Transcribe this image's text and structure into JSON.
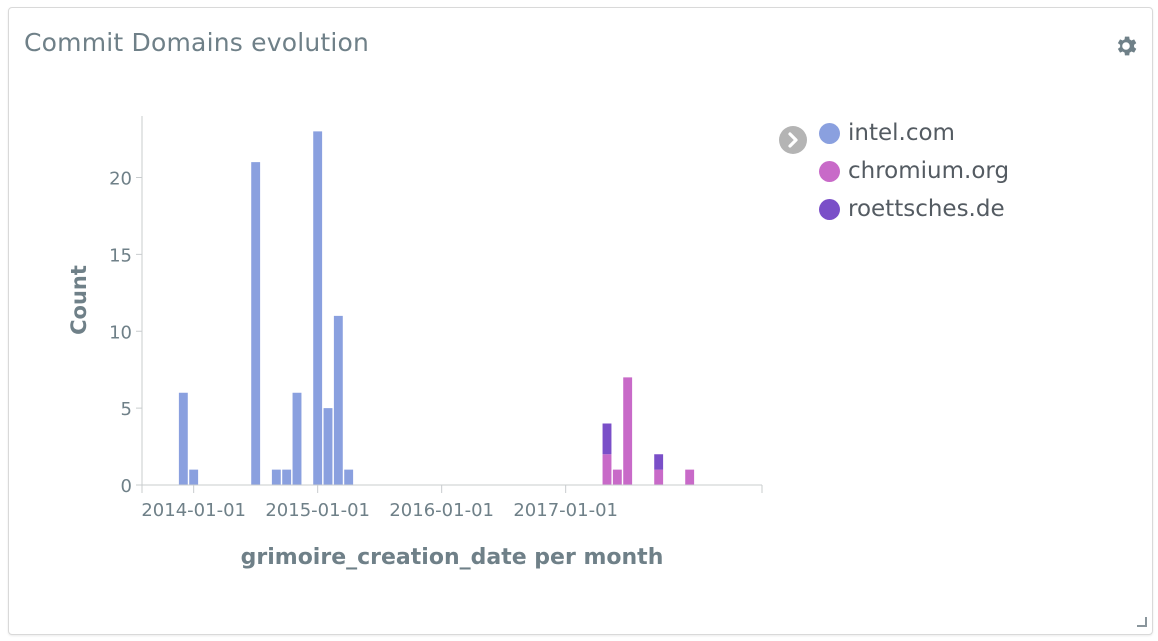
{
  "panel": {
    "title": "Commit Domains evolution",
    "settings_icon": "gear-icon",
    "resize_icon": "resize-handle-icon"
  },
  "legend": {
    "toggle_icon": "chevron-right-icon",
    "items": [
      {
        "label": "intel.com",
        "color": "#8aa0df"
      },
      {
        "label": "chromium.org",
        "color": "#c86ac8"
      },
      {
        "label": "roettsches.de",
        "color": "#7a4fc8"
      }
    ]
  },
  "chart_data": {
    "type": "bar",
    "stacked": true,
    "xlabel": "grimoire_creation_date per month",
    "ylabel": "Count",
    "ylim": [
      0,
      24
    ],
    "yticks": [
      0,
      5,
      10,
      15,
      20
    ],
    "xlim": [
      "2013-08-01",
      "2018-08-01"
    ],
    "xticks": [
      "2014-01-01",
      "2015-01-01",
      "2016-01-01",
      "2017-01-01"
    ],
    "grid": false,
    "legend_position": "right",
    "series": [
      {
        "name": "intel.com",
        "color": "#8aa0df",
        "points": [
          {
            "x": "2013-12-01",
            "y": 6
          },
          {
            "x": "2014-01-01",
            "y": 1
          },
          {
            "x": "2014-07-01",
            "y": 21
          },
          {
            "x": "2014-09-01",
            "y": 1
          },
          {
            "x": "2014-10-01",
            "y": 1
          },
          {
            "x": "2014-11-01",
            "y": 6
          },
          {
            "x": "2015-01-01",
            "y": 23
          },
          {
            "x": "2015-02-01",
            "y": 5
          },
          {
            "x": "2015-03-01",
            "y": 11
          },
          {
            "x": "2015-04-01",
            "y": 1
          }
        ]
      },
      {
        "name": "chromium.org",
        "color": "#c86ac8",
        "points": [
          {
            "x": "2017-05-01",
            "y": 2
          },
          {
            "x": "2017-06-01",
            "y": 1
          },
          {
            "x": "2017-07-01",
            "y": 7
          },
          {
            "x": "2017-10-01",
            "y": 1
          },
          {
            "x": "2018-01-01",
            "y": 1
          }
        ]
      },
      {
        "name": "roettsches.de",
        "color": "#7a4fc8",
        "points": [
          {
            "x": "2017-05-01",
            "y": 2
          },
          {
            "x": "2017-10-01",
            "y": 1
          }
        ]
      }
    ]
  }
}
